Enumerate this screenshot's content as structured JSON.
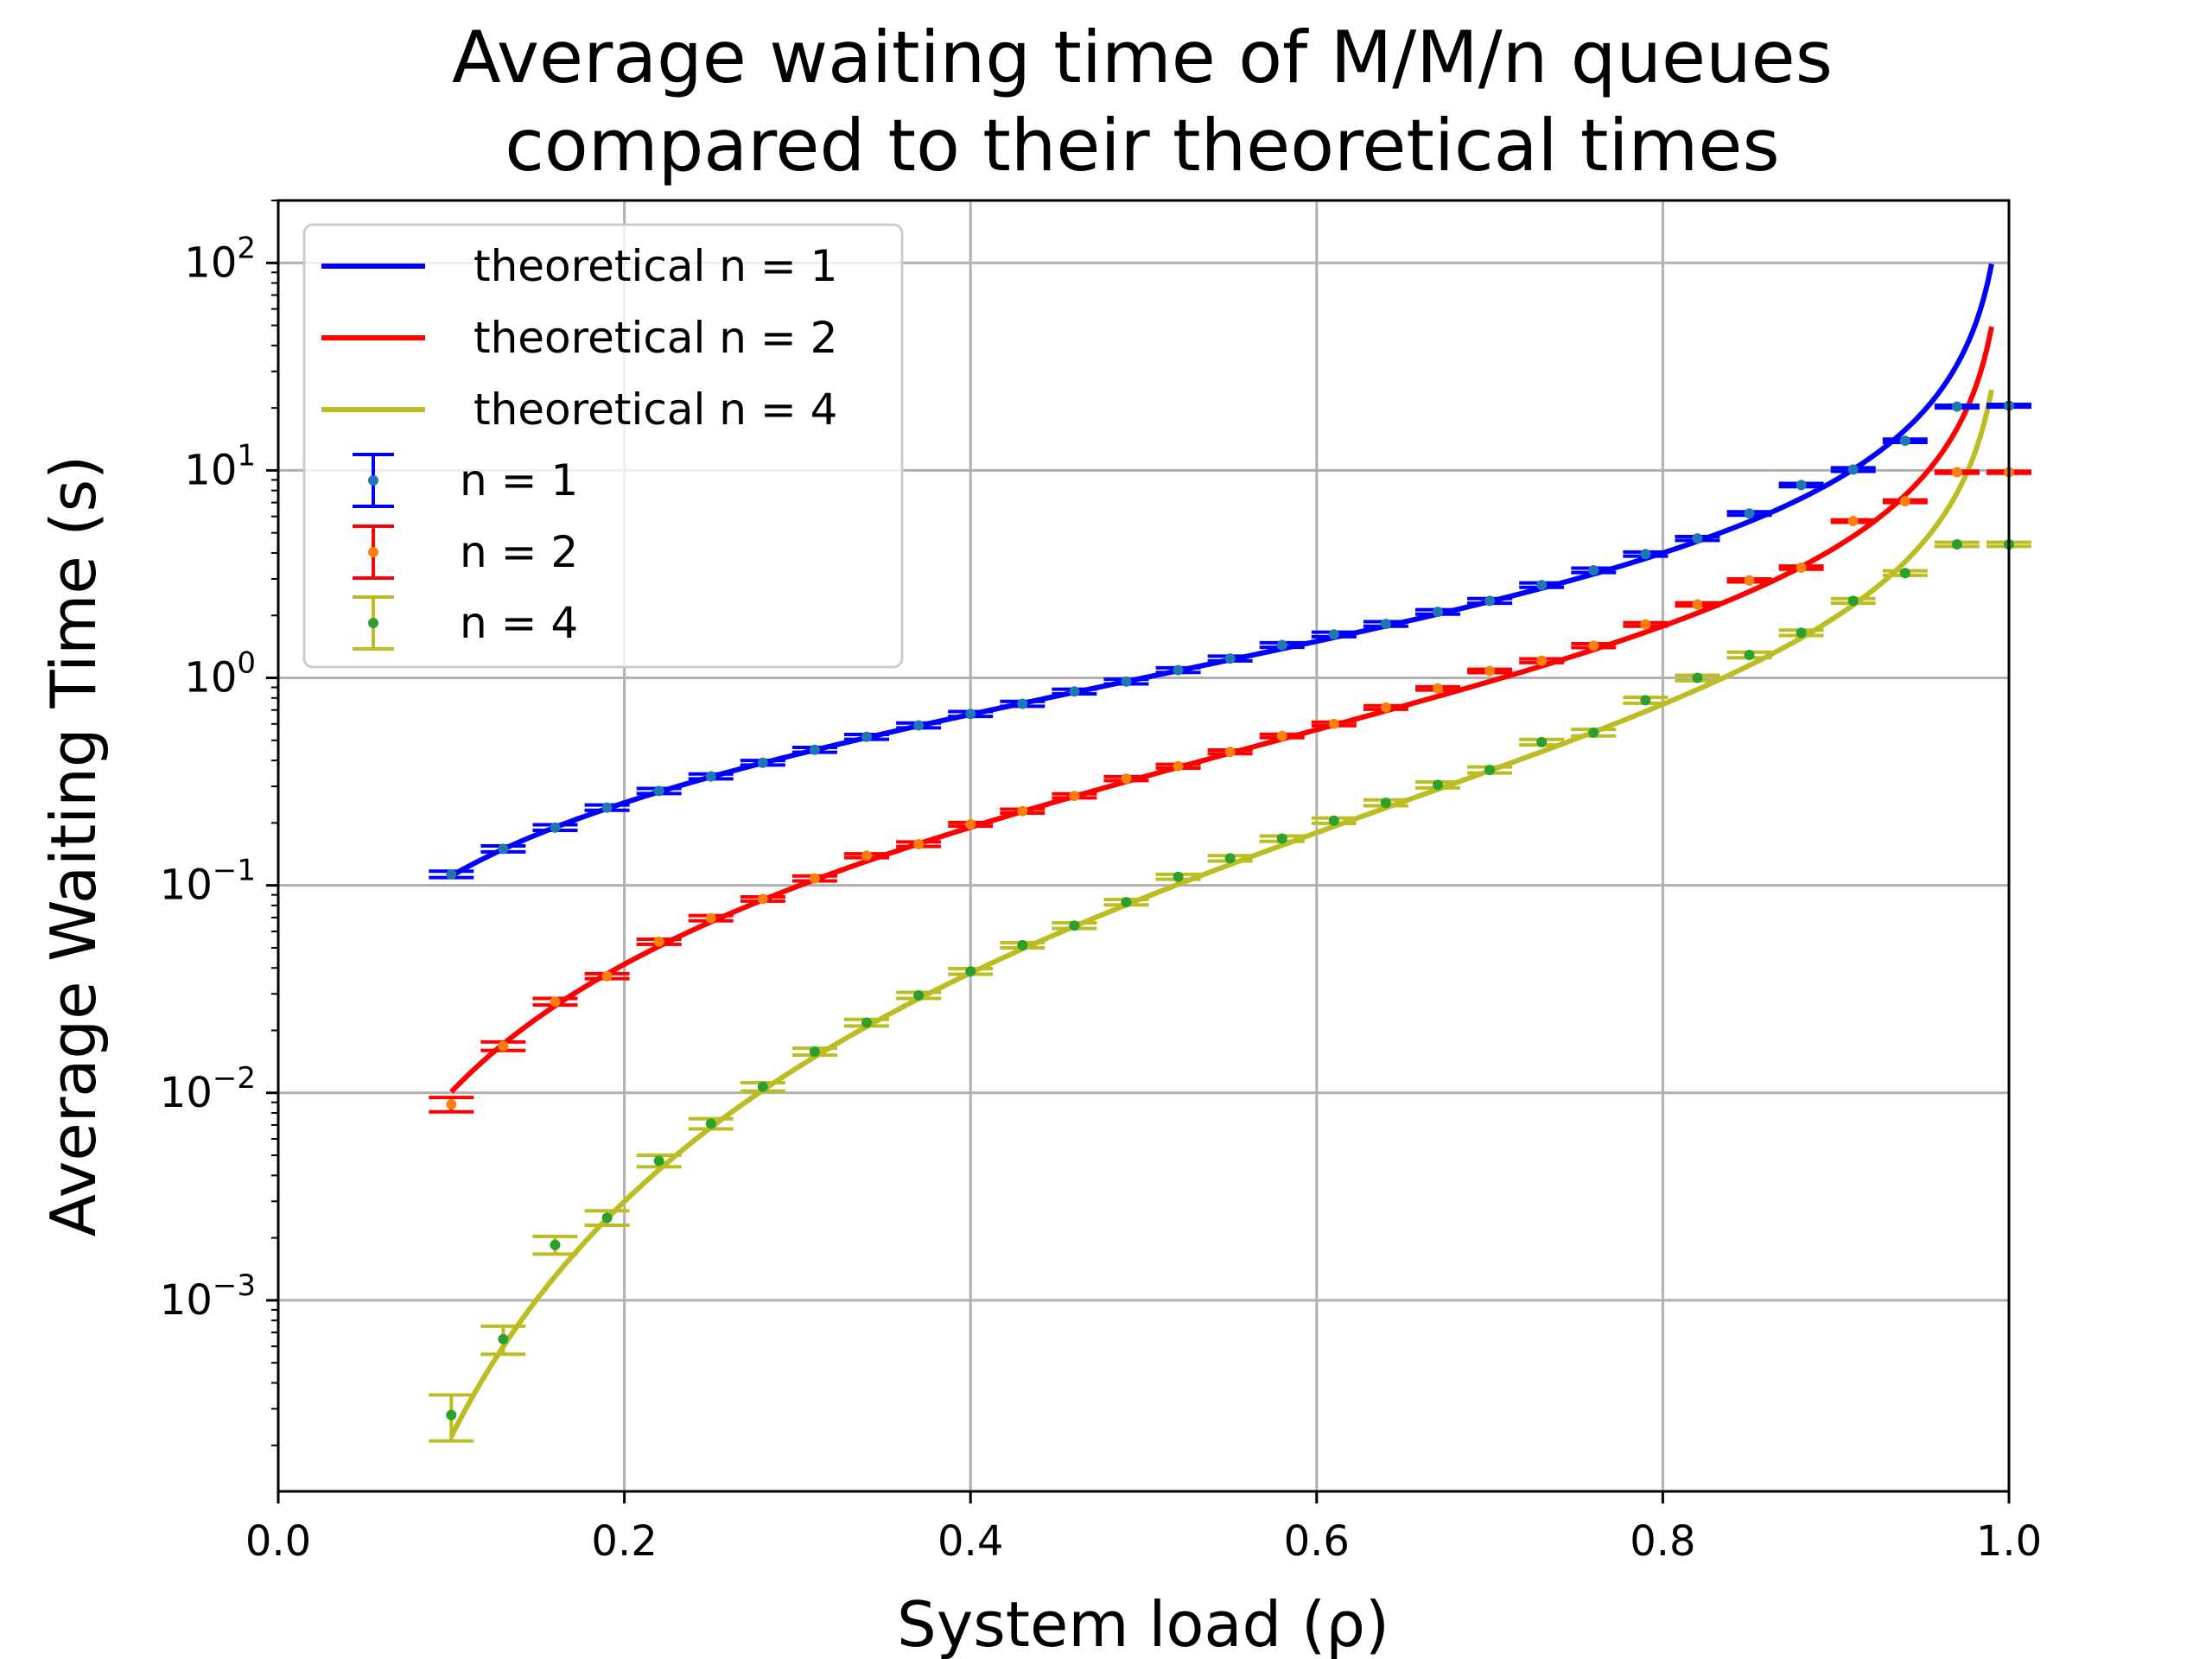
{
  "chart_data": {
    "type": "line",
    "title": [
      "Average waiting time of M/M/n queues",
      "compared to their theoretical times"
    ],
    "xlabel": "System load (ρ)",
    "ylabel": "Average Waiting Time (s)",
    "x_scale": "linear",
    "y_scale": "log",
    "xlim": [
      0.0,
      1.0
    ],
    "ylim": [
      0.00012,
      200
    ],
    "grid": true,
    "legend_position": "top-left",
    "x_ticks": [
      "0.0",
      "0.2",
      "0.4",
      "0.6",
      "0.8",
      "1.0"
    ],
    "y_ticks": [
      {
        "base": "10",
        "exp": "−3",
        "value": 0.001
      },
      {
        "base": "10",
        "exp": "−2",
        "value": 0.01
      },
      {
        "base": "10",
        "exp": "−1",
        "value": 0.1
      },
      {
        "base": "10",
        "exp": "0",
        "value": 1
      },
      {
        "base": "10",
        "exp": "1",
        "value": 10
      },
      {
        "base": "10",
        "exp": "2",
        "value": 100
      }
    ],
    "theoretical": [
      {
        "name": "theoretical n = 1",
        "n": 1,
        "color": "#0000ff",
        "rho_range": [
          0.1,
          0.99
        ]
      },
      {
        "name": "theoretical n = 2",
        "n": 2,
        "color": "#ff0000",
        "rho_range": [
          0.1,
          0.99
        ]
      },
      {
        "name": "theoretical n = 4",
        "n": 4,
        "color": "#bcbd22",
        "rho_range": [
          0.1,
          0.99
        ]
      }
    ],
    "x": [
      0.1,
      0.13,
      0.16,
      0.19,
      0.22,
      0.25,
      0.28,
      0.31,
      0.34,
      0.37,
      0.4,
      0.43,
      0.46,
      0.49,
      0.52,
      0.55,
      0.58,
      0.61,
      0.64,
      0.67,
      0.7,
      0.73,
      0.76,
      0.79,
      0.82,
      0.85,
      0.88,
      0.91,
      0.94,
      0.97,
      1.0
    ],
    "series": [
      {
        "name": "n = 1",
        "bar_color": "#0000ff",
        "marker_color": "#1f77b4",
        "values": [
          0.113,
          0.15,
          0.19,
          0.237,
          0.285,
          0.335,
          0.39,
          0.45,
          0.52,
          0.59,
          0.67,
          0.75,
          0.86,
          0.96,
          1.09,
          1.24,
          1.44,
          1.62,
          1.82,
          2.08,
          2.35,
          2.8,
          3.3,
          3.95,
          4.7,
          6.2,
          8.5,
          10.1,
          13.9,
          20.3,
          20.5
        ],
        "errors": [
          0.004,
          0.005,
          0.006,
          0.007,
          0.008,
          0.009,
          0.01,
          0.012,
          0.014,
          0.016,
          0.018,
          0.02,
          0.022,
          0.025,
          0.028,
          0.032,
          0.036,
          0.04,
          0.045,
          0.05,
          0.06,
          0.07,
          0.08,
          0.09,
          0.1,
          0.12,
          0.15,
          0.2,
          0.25,
          0.3,
          0.3
        ]
      },
      {
        "name": "n = 2",
        "bar_color": "#ff0000",
        "marker_color": "#ff7f0e",
        "values": [
          0.0088,
          0.0168,
          0.0275,
          0.0365,
          0.0535,
          0.0695,
          0.086,
          0.108,
          0.139,
          0.158,
          0.197,
          0.228,
          0.27,
          0.327,
          0.375,
          0.44,
          0.525,
          0.6,
          0.72,
          0.89,
          1.08,
          1.21,
          1.43,
          1.81,
          2.26,
          2.95,
          3.4,
          5.7,
          7.1,
          9.8,
          9.8
        ],
        "errors": [
          0.0007,
          0.0008,
          0.001,
          0.001,
          0.0015,
          0.002,
          0.002,
          0.003,
          0.003,
          0.004,
          0.004,
          0.005,
          0.006,
          0.007,
          0.008,
          0.009,
          0.01,
          0.012,
          0.014,
          0.016,
          0.02,
          0.025,
          0.03,
          0.035,
          0.04,
          0.05,
          0.06,
          0.08,
          0.1,
          0.12,
          0.12
        ]
      },
      {
        "name": "n = 4",
        "bar_color": "#bcbd22",
        "marker_color": "#2ca02c",
        "values": [
          0.00028,
          0.00065,
          0.00185,
          0.0025,
          0.0047,
          0.0071,
          0.0107,
          0.0158,
          0.0218,
          0.0295,
          0.0385,
          0.0515,
          0.064,
          0.083,
          0.11,
          0.135,
          0.168,
          0.205,
          0.25,
          0.305,
          0.36,
          0.49,
          0.545,
          0.78,
          1.0,
          1.29,
          1.65,
          2.35,
          3.2,
          4.4,
          4.4
        ],
        "errors": [
          7e-05,
          0.0001,
          0.00018,
          0.0002,
          0.0003,
          0.0004,
          0.0005,
          0.0006,
          0.0008,
          0.001,
          0.0012,
          0.0015,
          0.002,
          0.0025,
          0.003,
          0.004,
          0.005,
          0.006,
          0.008,
          0.01,
          0.012,
          0.015,
          0.02,
          0.025,
          0.03,
          0.04,
          0.05,
          0.06,
          0.08,
          0.1,
          0.1
        ]
      }
    ]
  }
}
